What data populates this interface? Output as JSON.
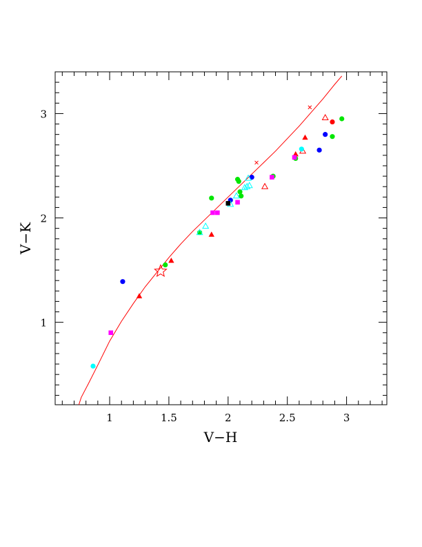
{
  "chart_data": {
    "type": "scatter",
    "xlabel": "V−H",
    "ylabel": "V−K",
    "xlim": [
      0.54,
      3.34
    ],
    "ylim": [
      0.21,
      3.4
    ],
    "x_ticks": [
      1,
      1.5,
      2,
      2.5,
      3
    ],
    "x_tick_labels": [
      "1",
      "1.5",
      "2",
      "2.5",
      "3"
    ],
    "y_ticks": [
      1,
      2,
      3
    ],
    "y_tick_labels": [
      "1",
      "2",
      "3"
    ],
    "grid": false,
    "legend": "none",
    "colors": {
      "red": "#ff0000",
      "blue": "#0000ff",
      "green": "#00e600",
      "magenta": "#ff00ff",
      "cyan": "#00ffff",
      "black": "#000000"
    },
    "curve": {
      "color": "#ff0000",
      "x": [
        0.74,
        0.76,
        0.82,
        0.9,
        1.0,
        1.1,
        1.2,
        1.3,
        1.4,
        1.5,
        1.6,
        1.7,
        1.8,
        1.9,
        2.0,
        2.1,
        2.2,
        2.3,
        2.4,
        2.5,
        2.6,
        2.7,
        2.8,
        2.9,
        2.96
      ],
      "y": [
        0.21,
        0.28,
        0.41,
        0.59,
        0.82,
        1.01,
        1.18,
        1.34,
        1.48,
        1.62,
        1.75,
        1.87,
        1.98,
        2.09,
        2.2,
        2.31,
        2.42,
        2.53,
        2.64,
        2.76,
        2.88,
        3.01,
        3.14,
        3.28,
        3.36
      ]
    },
    "curve_markers": {
      "x": [
        2.24,
        2.69
      ],
      "y": [
        2.53,
        3.06
      ]
    },
    "star": {
      "x": 1.43,
      "y": 1.49,
      "color": "#ff0000"
    },
    "series": [
      {
        "color": "#ff0000",
        "marker": "filled-triangle",
        "x": [
          1.25,
          1.52,
          1.86,
          2.57,
          2.65
        ],
        "y": [
          1.25,
          1.59,
          1.84,
          2.61,
          2.77
        ]
      },
      {
        "color": "#ff0000",
        "marker": "open-triangle",
        "x": [
          2.31,
          2.82,
          2.63
        ],
        "y": [
          2.3,
          2.96,
          2.64
        ]
      },
      {
        "color": "#ff0000",
        "marker": "filled-circle",
        "x": [
          2.88
        ],
        "y": [
          2.92
        ]
      },
      {
        "color": "#0000ff",
        "marker": "filled-circle",
        "x": [
          1.11,
          2.02,
          2.2,
          2.77,
          2.82
        ],
        "y": [
          1.39,
          2.17,
          2.39,
          2.65,
          2.8
        ]
      },
      {
        "color": "#00e600",
        "marker": "filled-circle",
        "x": [
          1.47,
          1.76,
          1.86,
          2.08,
          2.1,
          2.11,
          2.09,
          2.38,
          2.57,
          2.88,
          2.96
        ],
        "y": [
          1.55,
          1.86,
          2.19,
          2.37,
          2.25,
          2.21,
          2.35,
          2.4,
          2.57,
          2.78,
          2.95
        ]
      },
      {
        "color": "#ff00ff",
        "marker": "filled-square",
        "x": [
          1.01,
          1.87,
          1.91,
          2.08,
          2.37,
          2.56
        ],
        "y": [
          0.9,
          2.05,
          2.05,
          2.15,
          2.39,
          2.58
        ]
      },
      {
        "color": "#00ffff",
        "marker": "filled-circle",
        "x": [
          0.86,
          2.62
        ],
        "y": [
          0.58,
          2.66
        ]
      },
      {
        "color": "#00ffff",
        "marker": "open-triangle",
        "x": [
          1.76,
          1.81,
          2.02,
          2.07,
          2.14,
          2.16,
          2.18,
          2.17
        ],
        "y": [
          1.86,
          1.92,
          2.13,
          2.21,
          2.29,
          2.3,
          2.31,
          2.38
        ]
      },
      {
        "color": "#000000",
        "marker": "filled-square",
        "x": [
          2.0
        ],
        "y": [
          2.14
        ]
      }
    ]
  }
}
